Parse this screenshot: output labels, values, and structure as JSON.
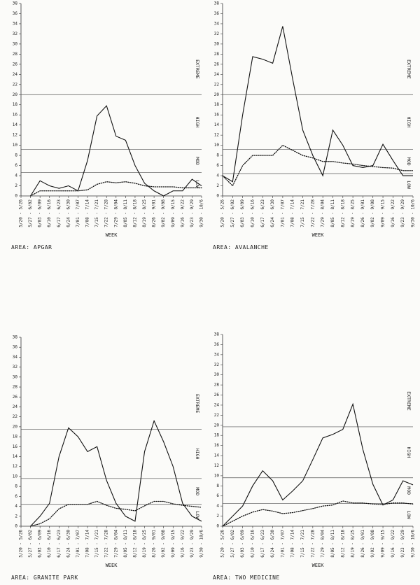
{
  "chart_data": [
    {
      "type": "line",
      "title": "AREA: APGAR",
      "x_label": "WEEK",
      "categories": [
        "5/20 - 5/26",
        "5/27 - 6/02",
        "6/03 - 6/09",
        "6/10 - 6/16",
        "6/17 - 6/23",
        "6/24 - 6/30",
        "7/01 - 7/07",
        "7/08 - 7/14",
        "7/15 - 7/21",
        "7/22 - 7/28",
        "7/29 - 8/04",
        "8/05 - 8/11",
        "8/12 - 8/18",
        "8/19 - 8/25",
        "8/26 - 9/01",
        "9/02 - 9/08",
        "9/09 - 9/15",
        "9/16 - 9/22",
        "9/23 - 9/29",
        "9/30 - 10/6"
      ],
      "series": [
        {
          "style": "solid",
          "color": "#111111",
          "values": [
            null,
            0,
            3,
            2,
            1.5,
            2,
            1,
            7,
            15.8,
            17.8,
            11.8,
            11,
            6,
            2.5,
            1,
            0,
            1,
            1,
            3.3,
            2
          ]
        },
        {
          "style": "dotted",
          "color": "#111111",
          "values": [
            null,
            0,
            1,
            1,
            1,
            1,
            1,
            1.2,
            2.3,
            2.8,
            2.6,
            2.8,
            2.5,
            2,
            1.8,
            1.8,
            1.8,
            1.6,
            1.6,
            1.6
          ]
        }
      ],
      "ylim": [
        0,
        38
      ],
      "yticks": [
        0,
        2,
        4,
        6,
        8,
        10,
        12,
        14,
        16,
        18,
        20,
        22,
        24,
        26,
        28,
        30,
        32,
        34,
        36,
        38
      ],
      "reference_lines": [
        20,
        9.2,
        4.6
      ],
      "zone_labels": [
        "EXTREME",
        "HIGH",
        "MOD",
        "LOW"
      ]
    },
    {
      "type": "line",
      "title": "AREA: AVALANCHE",
      "x_label": "WEEK",
      "categories": [
        "5/20 - 5/26",
        "5/27 - 6/02",
        "6/03 - 6/09",
        "6/10 - 6/16",
        "6/17 - 6/23",
        "6/24 - 6/30",
        "7/01 - 7/07",
        "7/08 - 7/14",
        "7/15 - 7/21",
        "7/22 - 7/28",
        "7/29 - 8/04",
        "8/05 - 8/11",
        "8/12 - 8/18",
        "8/19 - 8/25",
        "8/26 - 9/01",
        "9/02 - 9/08",
        "9/09 - 9/15",
        "9/16 - 9/22",
        "9/23 - 9/29",
        "9/30 - 10/6"
      ],
      "series": [
        {
          "style": "solid",
          "color": "#111111",
          "values": [
            4,
            2.8,
            16,
            27.5,
            27,
            26.2,
            33.5,
            23,
            13,
            8,
            4,
            13,
            10,
            6,
            5.6,
            6,
            10.2,
            7,
            4,
            4
          ]
        },
        {
          "style": "dotted",
          "color": "#111111",
          "values": [
            4,
            2,
            6,
            8,
            8,
            8,
            10,
            9,
            8,
            7.5,
            6.8,
            6.8,
            6.5,
            6.3,
            6,
            5.8,
            5.6,
            5.5,
            5,
            5
          ]
        }
      ],
      "ylim": [
        0,
        38
      ],
      "yticks": [
        0,
        2,
        4,
        6,
        8,
        10,
        12,
        14,
        16,
        18,
        20,
        22,
        24,
        26,
        28,
        30,
        32,
        34,
        36,
        38
      ],
      "reference_lines": [
        20,
        9.2,
        4.4
      ],
      "zone_labels": [
        "EXTREME",
        "HIGH",
        "MOD",
        "LOW"
      ]
    },
    {
      "type": "line",
      "title": "AREA: GRANITE PARK",
      "x_label": "WEEK",
      "categories": [
        "5/20 - 5/26",
        "5/27 - 6/02",
        "6/03 - 6/09",
        "6/10 - 6/16",
        "6/17 - 6/23",
        "6/24 - 6/30",
        "7/01 - 7/07",
        "7/08 - 7/14",
        "7/15 - 7/21",
        "7/22 - 7/28",
        "7/29 - 8/04",
        "8/05 - 8/11",
        "8/12 - 8/18",
        "8/19 - 8/25",
        "8/26 - 9/01",
        "9/02 - 9/08",
        "9/09 - 9/15",
        "9/16 - 9/22",
        "9/23 - 9/29",
        "9/30 - 10/6"
      ],
      "series": [
        {
          "style": "solid",
          "color": "#111111",
          "values": [
            null,
            0,
            2,
            4.6,
            14,
            19.8,
            18,
            15,
            16,
            9.2,
            4.6,
            2,
            1,
            15,
            21.2,
            17,
            12,
            4.6,
            2,
            1
          ]
        },
        {
          "style": "dotted",
          "color": "#111111",
          "values": [
            null,
            0,
            0.5,
            1.5,
            3.5,
            4.4,
            4.4,
            4.4,
            5,
            4.2,
            3.6,
            3.4,
            3.1,
            4.1,
            5,
            5,
            4.5,
            4.2,
            4,
            3.8
          ]
        }
      ],
      "ylim": [
        0,
        38
      ],
      "yticks": [
        0,
        2,
        4,
        6,
        8,
        10,
        12,
        14,
        16,
        18,
        20,
        22,
        24,
        26,
        28,
        30,
        32,
        34,
        36,
        38
      ],
      "reference_lines": [
        19.5,
        9.6,
        4.4
      ],
      "zone_labels": [
        "EXTREME",
        "HIGH",
        "MOD",
        "LOW"
      ]
    },
    {
      "type": "line",
      "title": "AREA: TWO MEDICINE",
      "x_label": "WEEK",
      "categories": [
        "5/20 - 5/26",
        "5/27 - 6/02",
        "6/03 - 6/09",
        "6/10 - 6/16",
        "6/17 - 6/23",
        "6/24 - 6/30",
        "7/01 - 7/07",
        "7/08 - 7/14",
        "7/15 - 7/21",
        "7/22 - 7/28",
        "7/29 - 8/04",
        "8/05 - 8/11",
        "8/12 - 8/18",
        "8/19 - 8/25",
        "8/26 - 9/01",
        "9/02 - 9/08",
        "9/09 - 9/15",
        "9/16 - 9/22",
        "9/23 - 9/29",
        "9/30 - 10/6"
      ],
      "series": [
        {
          "style": "solid",
          "color": "#111111",
          "values": [
            0,
            2,
            4,
            8,
            11,
            9,
            5.2,
            7,
            9,
            13.2,
            17.5,
            18.2,
            19.2,
            24.2,
            15.2,
            8.3,
            4.2,
            5.2,
            9,
            8.2
          ]
        },
        {
          "style": "dotted",
          "color": "#111111",
          "values": [
            0,
            1,
            2,
            2.8,
            3.3,
            3,
            2.5,
            2.7,
            3.1,
            3.5,
            4,
            4.2,
            5,
            4.6,
            4.6,
            4.4,
            4.3,
            4.6,
            4.6,
            4.4
          ]
        }
      ],
      "ylim": [
        0,
        38
      ],
      "yticks": [
        0,
        2,
        4,
        6,
        8,
        10,
        12,
        14,
        16,
        18,
        20,
        22,
        24,
        26,
        28,
        30,
        32,
        34,
        36,
        38
      ],
      "reference_lines": [
        19.7,
        9.6,
        4.5
      ],
      "zone_labels": [
        "EXTREME",
        "HIGH",
        "MOD",
        "LOW"
      ]
    }
  ]
}
